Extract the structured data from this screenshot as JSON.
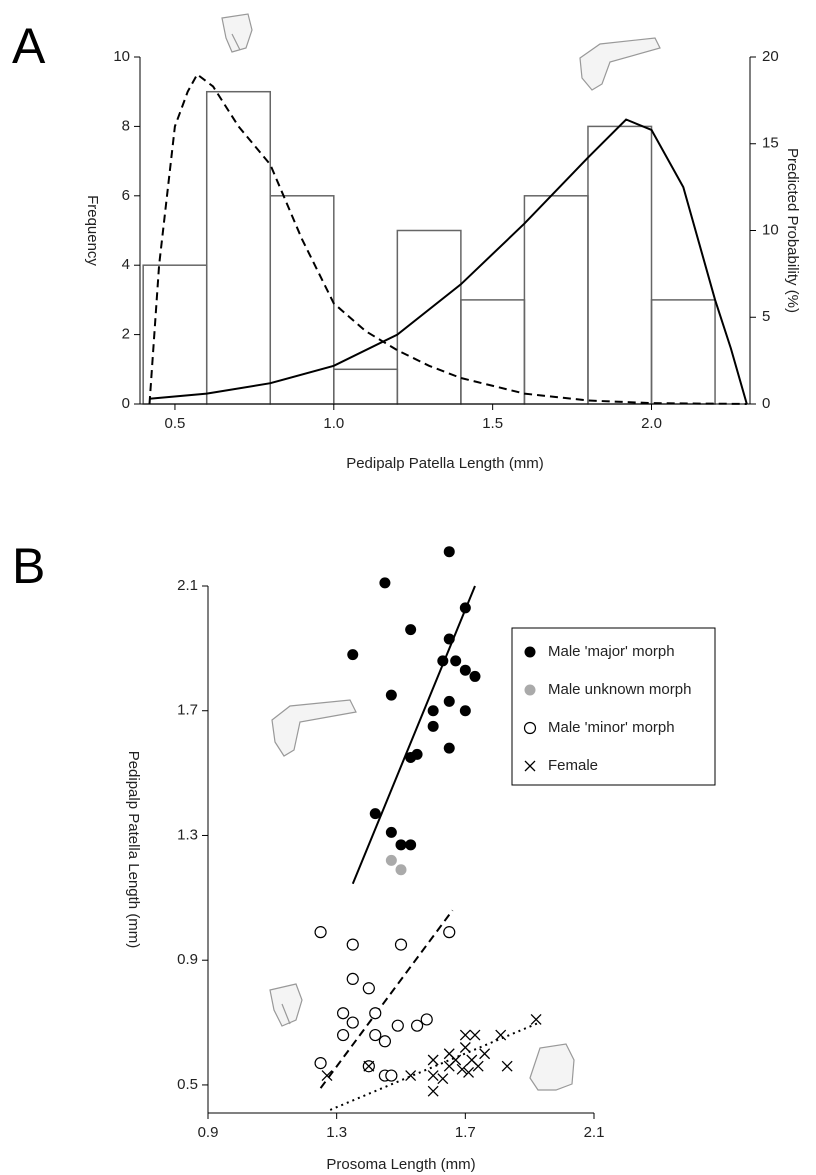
{
  "chart_data": [
    {
      "type": "histogram",
      "panel": "A",
      "xlabel": "Pedipalp Patella Length (mm)",
      "ylabel": "Frequency",
      "y2label": "Predicted Probability (%)",
      "bins": [
        0.4,
        0.6,
        0.8,
        1.0,
        1.2,
        1.4,
        1.6,
        1.8,
        2.0,
        2.2
      ],
      "values": [
        4,
        9,
        6,
        1,
        5,
        3,
        6,
        8,
        3
      ],
      "bar_color": "#666666",
      "xlim": [
        0.39,
        2.31
      ],
      "ylim": [
        0,
        10
      ],
      "y2lim": [
        0,
        20
      ],
      "xticks": [
        0.5,
        {
          "value": 1.0,
          "label": "1.0"
        },
        1.5,
        {
          "value": 2.0,
          "label": "2.0"
        }
      ],
      "yticks": [
        0,
        2,
        4,
        6,
        8,
        10
      ],
      "y2ticks": [
        0,
        5,
        10,
        15,
        20
      ],
      "series": [
        {
          "axis": "y2",
          "color": "#000000",
          "dash": "dashed",
          "x": [
            0.42,
            0.45,
            0.5,
            0.54,
            0.57,
            0.62,
            0.7,
            0.8,
            0.9,
            1.0,
            1.1,
            1.2,
            1.3,
            1.4,
            1.6,
            1.8,
            2.0,
            2.3
          ],
          "values": [
            0,
            8,
            16,
            18,
            19,
            18.3,
            16,
            13.8,
            9.5,
            5.8,
            4.2,
            3.1,
            2.2,
            1.5,
            0.6,
            0.2,
            0.05,
            0
          ]
        },
        {
          "axis": "y2",
          "color": "#000000",
          "dash": "solid",
          "x": [
            0.42,
            0.6,
            0.8,
            1.0,
            1.2,
            1.4,
            1.6,
            1.8,
            1.92,
            2.0,
            2.1,
            2.2,
            2.25,
            2.3
          ],
          "values": [
            0.3,
            0.6,
            1.2,
            2.2,
            4.0,
            6.9,
            10.4,
            14.2,
            16.4,
            15.8,
            12.5,
            6.0,
            3.2,
            0
          ]
        }
      ]
    },
    {
      "type": "scatter",
      "panel": "B",
      "xlabel": "Prosoma Length (mm)",
      "ylabel": "Pedipalp Patella Length (mm)",
      "xlim": [
        0.9,
        2.1
      ],
      "ylim": [
        0.41,
        2.1
      ],
      "xticks": [
        0.9,
        1.3,
        1.7,
        2.1
      ],
      "yticks": [
        0.5,
        0.9,
        1.3,
        1.7,
        2.1
      ],
      "legend": "upper right",
      "series": [
        {
          "name": "Male 'major' morph",
          "marker": "filled",
          "color": "#000000",
          "x": [
            1.35,
            1.45,
            1.53,
            1.65,
            1.7,
            1.65,
            1.47,
            1.63,
            1.67,
            1.7,
            1.73,
            1.7,
            1.65,
            1.6,
            1.6,
            1.65,
            1.55,
            1.53,
            1.42,
            1.47,
            1.5,
            1.53
          ],
          "values": [
            1.88,
            2.11,
            1.96,
            2.21,
            2.03,
            1.93,
            1.75,
            1.86,
            1.86,
            1.83,
            1.81,
            1.7,
            1.73,
            1.7,
            1.65,
            1.58,
            1.56,
            1.55,
            1.37,
            1.31,
            1.27,
            1.27
          ]
        },
        {
          "name": "Male unknown morph",
          "marker": "filled",
          "color": "#aaaaaa",
          "x": [
            1.47,
            1.5
          ],
          "values": [
            1.22,
            1.19
          ]
        },
        {
          "name": "Male 'minor' morph",
          "marker": "open",
          "color": "#000000",
          "x": [
            1.25,
            1.35,
            1.5,
            1.65,
            1.35,
            1.4,
            1.42,
            1.32,
            1.35,
            1.32,
            1.42,
            1.45,
            1.49,
            1.55,
            1.58,
            1.25,
            1.45,
            1.47,
            1.4
          ],
          "values": [
            0.99,
            0.95,
            0.95,
            0.99,
            0.84,
            0.81,
            0.73,
            0.73,
            0.7,
            0.66,
            0.66,
            0.64,
            0.69,
            0.69,
            0.71,
            0.57,
            0.53,
            0.53,
            0.56
          ]
        },
        {
          "name": "Female",
          "marker": "cross",
          "color": "#000000",
          "x": [
            1.4,
            1.53,
            1.6,
            1.6,
            1.6,
            1.65,
            1.65,
            1.67,
            1.69,
            1.7,
            1.7,
            1.72,
            1.73,
            1.74,
            1.76,
            1.81,
            1.83,
            1.92,
            1.63,
            1.71,
            1.27
          ],
          "values": [
            0.56,
            0.53,
            0.58,
            0.53,
            0.48,
            0.6,
            0.56,
            0.58,
            0.55,
            0.62,
            0.66,
            0.58,
            0.66,
            0.56,
            0.6,
            0.66,
            0.56,
            0.71,
            0.52,
            0.54,
            0.53
          ]
        }
      ],
      "lines": [
        {
          "dash": "solid",
          "x": [
            1.35,
            1.73
          ],
          "values": [
            1.145,
            2.1
          ]
        },
        {
          "dash": "dashed",
          "x": [
            1.25,
            1.66
          ],
          "values": [
            0.49,
            1.06
          ]
        },
        {
          "dash": "dotted",
          "x": [
            1.28,
            1.93
          ],
          "values": [
            0.42,
            0.7
          ]
        }
      ]
    }
  ]
}
